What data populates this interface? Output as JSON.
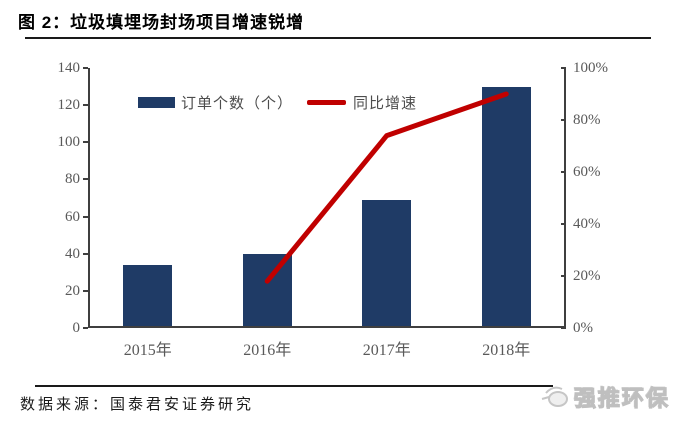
{
  "title": "图 2：垃圾填埋场封场项目增速锐增",
  "source_note": "数据来源：国泰君安证券研究",
  "watermark": {
    "label": "强推环保",
    "icon": "bird-logo-icon"
  },
  "colors": {
    "bar": "#1F3B66",
    "line": "#C00000",
    "axis_text": "#595959",
    "legend_text": "#4d4d4d"
  },
  "chart_data": {
    "type": "bar",
    "title": "图 2：垃圾填埋场封场项目增速锐增",
    "categories": [
      "2015年",
      "2016年",
      "2017年",
      "2018年"
    ],
    "series": [
      {
        "name": "订单个数（个）",
        "type": "bar",
        "axis": "left",
        "values": [
          34,
          40,
          69,
          130
        ]
      },
      {
        "name": "同比增速",
        "type": "line",
        "axis": "right",
        "unit": "%",
        "values": [
          null,
          18,
          74,
          90
        ]
      }
    ],
    "left_axis": {
      "min": 0,
      "max": 140,
      "step": 20,
      "ticks": [
        "0",
        "20",
        "40",
        "60",
        "80",
        "100",
        "120",
        "140"
      ]
    },
    "right_axis": {
      "min": 0,
      "max": 100,
      "step": 20,
      "ticks": [
        "0%",
        "20%",
        "40%",
        "60%",
        "80%",
        "100%"
      ]
    },
    "legend_position": "top-inside",
    "grid": false
  }
}
